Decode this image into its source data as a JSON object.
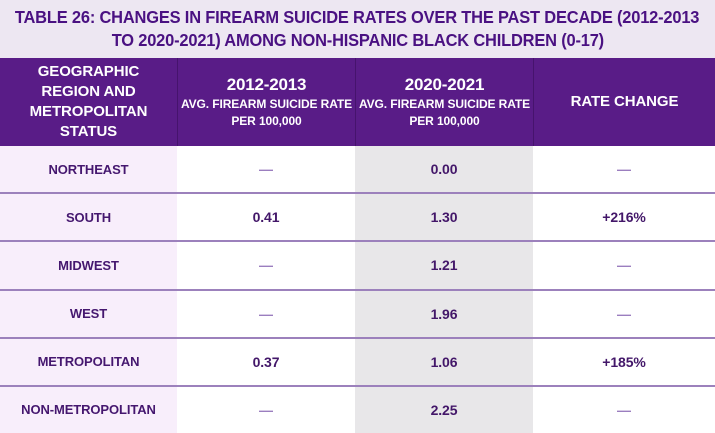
{
  "title": {
    "line1": "TABLE 26: CHANGES IN FIREARM SUICIDE RATES OVER THE PAST DECADE (2012-2013",
    "line2": "TO 2020-2021) AMONG NON-HISPANIC BLACK CHILDREN (0-17)"
  },
  "header": {
    "col1": {
      "title": "GEOGRAPHIC REGION AND METROPOLITAN STATUS"
    },
    "col2": {
      "period": "2012-2013",
      "sub_line1": "AVG. FIREARM SUICIDE RATE",
      "sub_line2": "PER 100,000"
    },
    "col3": {
      "period": "2020-2021",
      "sub_line1": "AVG. FIREARM SUICIDE RATE",
      "sub_line2": "PER 100,000"
    },
    "col4": {
      "title": "RATE CHANGE"
    }
  },
  "rows": [
    {
      "region": "NORTHEAST",
      "rate_2012_2013": "—",
      "rate_2020_2021": "0.00",
      "rate_change": "—"
    },
    {
      "region": "SOUTH",
      "rate_2012_2013": "0.41",
      "rate_2020_2021": "1.30",
      "rate_change": "+216%"
    },
    {
      "region": "MIDWEST",
      "rate_2012_2013": "—",
      "rate_2020_2021": "1.21",
      "rate_change": "—"
    },
    {
      "region": "WEST",
      "rate_2012_2013": "—",
      "rate_2020_2021": "1.96",
      "rate_change": "—"
    },
    {
      "region": "METROPOLITAN",
      "rate_2012_2013": "0.37",
      "rate_2020_2021": "1.06",
      "rate_change": "+185%"
    },
    {
      "region": "NON-METROPOLITAN",
      "rate_2012_2013": "—",
      "rate_2020_2021": "2.25",
      "rate_change": "—"
    }
  ],
  "colors": {
    "page_background": "#EDE7F2",
    "title_text": "#4A1182",
    "header_background": "#591C87",
    "header_text": "#FFFFFF",
    "region_column_background": "#F8EEFB",
    "highlight_column_background": "#E8E7E9",
    "value_column_background": "#FFFFFF",
    "body_text": "#431769",
    "dash_text": "#9B7EBF",
    "row_divider": "#9C81BC"
  },
  "chart_data": {
    "type": "table",
    "title": "TABLE 26: CHANGES IN FIREARM SUICIDE RATES OVER THE PAST DECADE (2012-2013 TO 2020-2021) AMONG NON-HISPANIC BLACK CHILDREN (0-17)",
    "columns": [
      "GEOGRAPHIC REGION AND METROPOLITAN STATUS",
      "2012-2013 AVG. FIREARM SUICIDE RATE PER 100,000",
      "2020-2021 AVG. FIREARM SUICIDE RATE PER 100,000",
      "RATE CHANGE"
    ],
    "rows": [
      [
        "NORTHEAST",
        null,
        0.0,
        null
      ],
      [
        "SOUTH",
        0.41,
        1.3,
        "+216%"
      ],
      [
        "MIDWEST",
        null,
        1.21,
        null
      ],
      [
        "WEST",
        null,
        1.96,
        null
      ],
      [
        "METROPOLITAN",
        0.37,
        1.06,
        "+185%"
      ],
      [
        "NON-METROPOLITAN",
        null,
        2.25,
        null
      ]
    ],
    "notes": "null cells are rendered as em dashes (—); 2020-2021 column is shaded gray"
  }
}
